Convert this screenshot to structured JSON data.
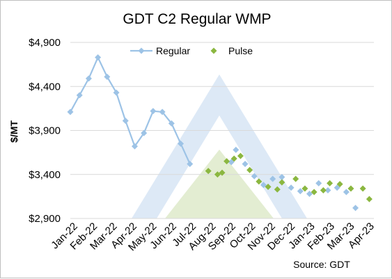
{
  "chart_data": {
    "type": "line",
    "title": "GDT C2 Regular WMP",
    "ylabel": "$/MT",
    "xlabel": "",
    "source": "Source: GDT",
    "ylim": [
      2900,
      4900
    ],
    "yticks": [
      "$2,900",
      "$3,400",
      "$3,900",
      "$4,400",
      "$4,900"
    ],
    "ytick_values": [
      2900,
      3400,
      3900,
      4400,
      4900
    ],
    "categories": [
      "Jan-22",
      "Feb-22",
      "Mar-22",
      "Apr-22",
      "May-22",
      "Jun-22",
      "Jul-22",
      "Aug-22",
      "Sep-22",
      "Oct-22",
      "Nov-22",
      "Dec-22",
      "Jan-23",
      "Feb-23",
      "Mar-23",
      "Apr-23"
    ],
    "x_unit": "auction event (2 per month)",
    "grid": "horizontal",
    "legend_position": "top",
    "series": [
      {
        "name": "Regular",
        "color": "#9dc3e6",
        "marker": "diamond",
        "line": true,
        "x": [
          0,
          1,
          2,
          3,
          4,
          5,
          6,
          7,
          8,
          9,
          10,
          11,
          12,
          13
        ],
        "values": [
          4110,
          4300,
          4490,
          4730,
          4510,
          4330,
          4010,
          3720,
          3870,
          4120,
          4110,
          3980,
          3750,
          3520
        ]
      },
      {
        "name": "Regular",
        "color": "#9dc3e6",
        "marker": "diamond",
        "line": false,
        "x": [
          17.5,
          18,
          19,
          20,
          21,
          22,
          23,
          24,
          25,
          26,
          27,
          28,
          29,
          30,
          31
        ],
        "values": [
          3540,
          3680,
          3520,
          3380,
          3280,
          3350,
          3370,
          3250,
          3210,
          3180,
          3300,
          3220,
          3250,
          3200,
          3020
        ]
      },
      {
        "name": "Pulse",
        "color": "#8bb740",
        "marker": "diamond",
        "line": false,
        "x": [
          15,
          16,
          16.5,
          17,
          17.8,
          18.5,
          19.5,
          20.5,
          21.5,
          22.5,
          23,
          24.5,
          25.5,
          26.5,
          27.5,
          28.2,
          29.3,
          30.5,
          31.8,
          32.5
        ],
        "values": [
          3440,
          3400,
          3420,
          3550,
          3580,
          3610,
          3450,
          3320,
          3260,
          3230,
          3310,
          3350,
          3240,
          3200,
          3220,
          3300,
          3290,
          3240,
          3240,
          3120
        ]
      }
    ],
    "x_max": 33
  },
  "colors": {
    "regular": "#9dc3e6",
    "pulse": "#8bb740",
    "grid": "#d9d9d9",
    "watermark_blue": "#dde9f6",
    "watermark_green": "#e3edd2"
  }
}
